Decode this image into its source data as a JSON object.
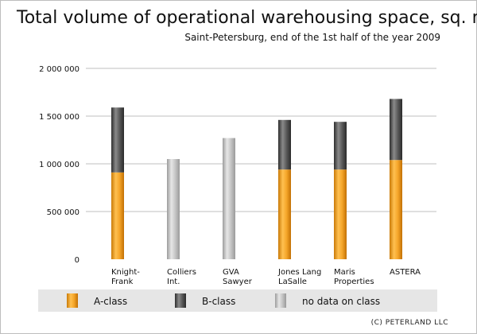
{
  "chart_data": {
    "type": "bar",
    "stacked": true,
    "title": "Total volume of operational warehousing space, sq. m.",
    "subtitle": "Saint-Petersburg, end of the 1st half of the year 2009",
    "categories": [
      [
        "Knight-",
        "Frank"
      ],
      [
        "Colliers",
        "Int."
      ],
      [
        "GVA",
        "Sawyer"
      ],
      [
        "Jones Lang",
        "LaSalle"
      ],
      [
        "Maris",
        "Properties"
      ],
      [
        "ASTERA"
      ]
    ],
    "series": [
      {
        "name": "A-class",
        "color": "#f0a020",
        "values": [
          910000,
          null,
          null,
          940000,
          940000,
          1040000
        ]
      },
      {
        "name": "B-class",
        "color": "#555555",
        "values": [
          680000,
          null,
          null,
          520000,
          500000,
          640000
        ]
      },
      {
        "name": "no data on class",
        "color": "#c0c0c0",
        "values": [
          null,
          1050000,
          1270000,
          null,
          null,
          null
        ]
      }
    ],
    "ylim": [
      0,
      2000000
    ],
    "yticks": [
      0,
      500000,
      1000000,
      1500000,
      2000000
    ],
    "ytick_labels": [
      "0",
      "500 000",
      "1 000 000",
      "1 500 000",
      "2 000 000"
    ],
    "grid": true,
    "legend_position": "bottom"
  },
  "copyright": "(C) PETERLAND LLC"
}
